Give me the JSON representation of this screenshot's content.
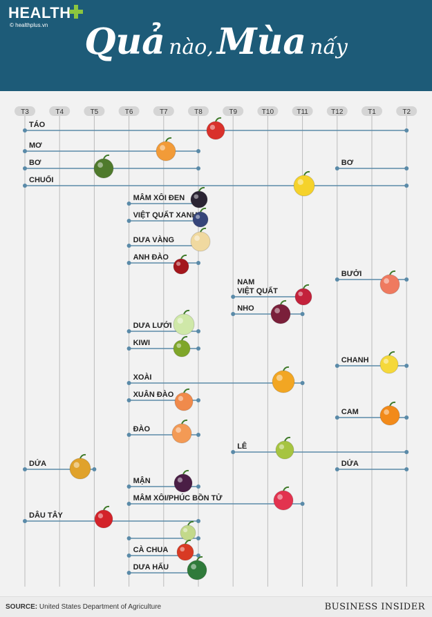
{
  "header": {
    "logo": "HEALTH",
    "logo_sub": "© healthplus.vn",
    "title_part1": "Quả",
    "title_part2": "nào,",
    "title_part3": "Mùa",
    "title_part4": "nấy"
  },
  "footer": {
    "source_label": "SOURCE:",
    "source_text": "United States Department of Agriculture",
    "brand": "BUSINESS INSIDER"
  },
  "colors": {
    "header_bg": "#1d5b78",
    "line": "#5a8aa8",
    "grid": "#bbbbbb",
    "month_pill": "#d5d5d5"
  },
  "chart_data": {
    "type": "timeline",
    "months": [
      "T3",
      "T4",
      "T5",
      "T6",
      "T7",
      "T8",
      "T9",
      "T10",
      "T11",
      "T12",
      "T1",
      "T2"
    ],
    "items": [
      {
        "label": "TÁO",
        "segments": [
          [
            "T3",
            "T2"
          ]
        ],
        "icon": "apple",
        "color": "#d9312b"
      },
      {
        "label": "MƠ",
        "segments": [
          [
            "T3",
            "T8"
          ]
        ],
        "icon": "apricot",
        "color": "#f29b38"
      },
      {
        "label": "BƠ",
        "segments": [
          [
            "T3",
            "T8"
          ]
        ],
        "icon": "avocado",
        "color": "#4f7a2c"
      },
      {
        "label": "BƠ",
        "segments": [
          [
            "T12",
            "T2"
          ]
        ]
      },
      {
        "label": "CHUỐI",
        "segments": [
          [
            "T3",
            "T2"
          ]
        ],
        "icon": "banana",
        "color": "#f5d22b"
      },
      {
        "label": "MÂM XÔI ĐEN",
        "segments": [
          [
            "T6",
            "T8"
          ]
        ],
        "icon": "blackberry",
        "color": "#2b2433"
      },
      {
        "label": "VIỆT QUẤT XANH",
        "segments": [
          [
            "T6",
            "T8"
          ]
        ],
        "icon": "blueberry",
        "color": "#36457a"
      },
      {
        "label": "DƯA VÀNG",
        "segments": [
          [
            "T6",
            "T8"
          ]
        ],
        "icon": "cantaloupe",
        "color": "#f0d9a0"
      },
      {
        "label": "ANH ĐÀO",
        "segments": [
          [
            "T6",
            "T8"
          ]
        ],
        "icon": "cherry",
        "color": "#a3161c"
      },
      {
        "label": "BƯỞI",
        "segments": [
          [
            "T12",
            "T2"
          ]
        ],
        "icon": "grapefruit",
        "color": "#ef7a5f"
      },
      {
        "label": "NAM VIỆT QUẤT",
        "segments": [
          [
            "T9",
            "T11"
          ]
        ],
        "icon": "cranberry",
        "color": "#c3223b"
      },
      {
        "label": "NHO",
        "segments": [
          [
            "T9",
            "T11"
          ]
        ],
        "icon": "grape",
        "color": "#7a1f3a"
      },
      {
        "label": "DƯA LƯỚI",
        "segments": [
          [
            "T6",
            "T8"
          ]
        ],
        "icon": "honeydew",
        "color": "#cfe8a8"
      },
      {
        "label": "KIWI",
        "segments": [
          [
            "T6",
            "T8"
          ]
        ],
        "icon": "kiwi",
        "color": "#7fa62a"
      },
      {
        "label": "CHANH",
        "segments": [
          [
            "T12",
            "T2"
          ]
        ],
        "icon": "lemon",
        "color": "#f5d83a"
      },
      {
        "label": "XOÀI",
        "segments": [
          [
            "T6",
            "T11"
          ]
        ],
        "icon": "mango",
        "color": "#f2a623"
      },
      {
        "label": "XUÂN ĐÀO",
        "segments": [
          [
            "T6",
            "T8"
          ]
        ],
        "icon": "nectarine",
        "color": "#f08a4b"
      },
      {
        "label": "CAM",
        "segments": [
          [
            "T12",
            "T2"
          ]
        ],
        "icon": "orange",
        "color": "#f28a1a"
      },
      {
        "label": "ĐÀO",
        "segments": [
          [
            "T6",
            "T8"
          ]
        ],
        "icon": "peach",
        "color": "#f39a55"
      },
      {
        "label": "LÊ",
        "segments": [
          [
            "T9",
            "T2"
          ]
        ],
        "icon": "pear",
        "color": "#a6c441"
      },
      {
        "label": "DỨA",
        "segments": [
          [
            "T3",
            "T5"
          ]
        ],
        "icon": "pineapple",
        "color": "#e0a22b"
      },
      {
        "label": "DỨA",
        "segments": [
          [
            "T12",
            "T2"
          ]
        ]
      },
      {
        "label": "MẬN",
        "segments": [
          [
            "T6",
            "T8"
          ]
        ],
        "icon": "plum",
        "color": "#4a1e45"
      },
      {
        "label": "MÂM XÔI/PHÚC BỒN TỬ",
        "segments": [
          [
            "T6",
            "T11"
          ]
        ],
        "icon": "raspberry",
        "color": "#e2334f"
      },
      {
        "label": "DÂU TÂY",
        "segments": [
          [
            "T3",
            "T8"
          ]
        ],
        "icon": "strawberry",
        "color": "#d3232a"
      },
      {
        "label": "",
        "segments": [
          [
            "T6",
            "T8"
          ]
        ],
        "icon": "tomatillo",
        "color": "#c3d98a"
      },
      {
        "label": "CÀ CHUA",
        "segments": [
          [
            "T6",
            "T8"
          ]
        ],
        "icon": "tomato",
        "color": "#d83a24"
      },
      {
        "label": "DƯA HẤU",
        "segments": [
          [
            "T6",
            "T8"
          ]
        ],
        "icon": "watermelon",
        "color": "#2f7a3a"
      }
    ]
  }
}
